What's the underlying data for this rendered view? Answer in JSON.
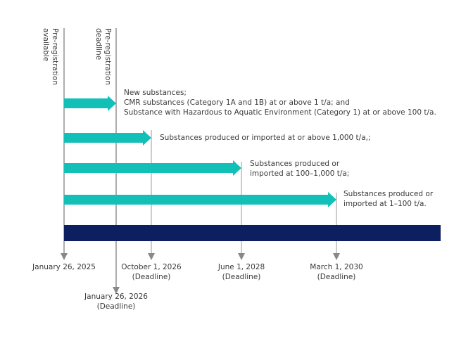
{
  "colors": {
    "arrow": "#13c0b8",
    "timeline_bar": "#0c1f5f",
    "marker_line": "#888888"
  },
  "markers": [
    {
      "label": "Pre-registration available",
      "lines": [
        "Pre-registration",
        "available"
      ],
      "date": "January 26, 2025",
      "note": ""
    },
    {
      "label": "Pre-registration deadline",
      "lines": [
        "Pre-registration",
        "deadline"
      ],
      "date": "January 26, 2026",
      "note": "(Deadline)"
    },
    {
      "date": "October 1, 2026",
      "note": "(Deadline)"
    },
    {
      "date": "June 1, 2028",
      "note": "(Deadline)"
    },
    {
      "date": "March 1, 2030",
      "note": "(Deadline)"
    }
  ],
  "phases": [
    {
      "lines": [
        "New substances;",
        "CMR substances (Category 1A and 1B) at or above 1 t/a; and",
        "Substance with Hazardous to Aquatic Environment (Category 1) at or above 100 t/a."
      ]
    },
    {
      "lines": [
        "Substances produced or imported at or above 1,000 t/a,;"
      ]
    },
    {
      "lines": [
        "Substances produced or",
        "imported at 100–1,000 t/a;"
      ]
    },
    {
      "lines": [
        "Substances produced or",
        "imported at 1–100 t/a."
      ]
    }
  ]
}
